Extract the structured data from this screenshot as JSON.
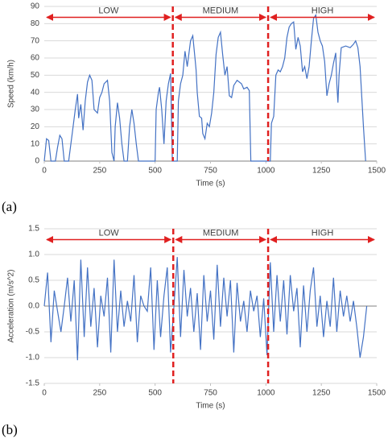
{
  "chart_data": [
    {
      "type": "line",
      "label": "(a)",
      "xlabel": "Time (s)",
      "ylabel": "Speed (km/h)",
      "color": "#4472c4",
      "divider_color": "#e02020",
      "xlim": [
        0,
        1500
      ],
      "xticks": [
        0,
        250,
        500,
        750,
        1000,
        1250,
        1500
      ],
      "ylim": [
        0,
        90
      ],
      "yticks": [
        0,
        10,
        20,
        30,
        40,
        50,
        60,
        70,
        80,
        90
      ],
      "grid": true,
      "dividers": [
        580,
        1010
      ],
      "regions": [
        "LOW",
        "MEDIUM",
        "HIGH"
      ],
      "x": [
        0,
        10,
        20,
        30,
        50,
        60,
        70,
        80,
        90,
        110,
        130,
        140,
        150,
        155,
        165,
        175,
        185,
        195,
        205,
        215,
        225,
        240,
        250,
        260,
        270,
        285,
        295,
        305,
        315,
        320,
        330,
        340,
        350,
        360,
        375,
        385,
        395,
        405,
        415,
        425,
        480,
        500,
        505,
        515,
        520,
        530,
        540,
        550,
        560,
        570,
        578,
        600,
        605,
        615,
        625,
        635,
        645,
        650,
        660,
        670,
        680,
        685,
        690,
        700,
        710,
        715,
        725,
        735,
        745,
        755,
        765,
        775,
        785,
        795,
        805,
        815,
        825,
        835,
        845,
        855,
        870,
        880,
        890,
        900,
        915,
        925,
        932,
        1020,
        1025,
        1035,
        1045,
        1055,
        1065,
        1075,
        1085,
        1095,
        1105,
        1115,
        1125,
        1135,
        1145,
        1155,
        1165,
        1175,
        1185,
        1195,
        1205,
        1215,
        1225,
        1235,
        1245,
        1255,
        1265,
        1275,
        1285,
        1295,
        1305,
        1315,
        1320,
        1325,
        1330,
        1340,
        1360,
        1380,
        1395,
        1405,
        1415,
        1425,
        1440,
        1450
      ],
      "values": [
        0,
        13,
        12,
        0,
        0,
        8,
        15,
        13,
        0,
        0,
        20,
        30,
        39,
        25,
        33,
        18,
        35,
        46,
        50,
        47,
        30,
        28,
        37,
        40,
        45,
        47,
        35,
        5,
        0,
        20,
        34,
        25,
        10,
        0,
        0,
        20,
        30,
        22,
        10,
        0,
        0,
        0,
        30,
        40,
        43,
        30,
        10,
        35,
        45,
        51,
        0,
        0,
        35,
        45,
        50,
        64,
        55,
        60,
        70,
        73,
        60,
        53,
        40,
        26,
        25,
        16,
        13,
        22,
        20,
        28,
        40,
        62,
        72,
        75,
        62,
        50,
        55,
        38,
        37,
        44,
        47,
        46,
        45,
        42,
        43,
        41,
        0,
        0,
        22,
        26,
        50,
        53,
        52,
        55,
        60,
        72,
        78,
        80,
        81,
        65,
        72,
        67,
        52,
        55,
        48,
        55,
        70,
        83,
        85,
        75,
        70,
        67,
        58,
        38,
        45,
        50,
        57,
        63,
        45,
        34,
        50,
        66,
        67,
        66,
        68,
        70,
        66,
        55,
        20,
        0
      ]
    },
    {
      "type": "line",
      "label": "(b)",
      "xlabel": "Time (s)",
      "ylabel": "Acceleration (m/s^2)",
      "color": "#4472c4",
      "divider_color": "#e02020",
      "xlim": [
        0,
        1500
      ],
      "xticks": [
        0,
        250,
        500,
        750,
        1000,
        1250,
        1500
      ],
      "ylim": [
        -1.5,
        1.5
      ],
      "yticks": [
        -1.5,
        {
          "value": -1,
          "label": "-1.0"
        },
        -0.5,
        {
          "value": 0,
          "label": "0.0"
        },
        0.5,
        {
          "value": 1,
          "label": "1.0"
        },
        1.5
      ],
      "grid": true,
      "dividers": [
        582,
        1010
      ],
      "regions": [
        "LOW",
        "MEDIUM",
        "HIGH"
      ],
      "x": [
        0,
        15,
        30,
        45,
        60,
        75,
        90,
        105,
        120,
        135,
        150,
        165,
        180,
        195,
        210,
        225,
        240,
        255,
        270,
        285,
        300,
        315,
        330,
        345,
        360,
        375,
        390,
        405,
        420,
        435,
        450,
        465,
        480,
        495,
        510,
        525,
        540,
        555,
        570,
        585,
        600,
        615,
        630,
        645,
        660,
        675,
        690,
        705,
        720,
        735,
        750,
        765,
        780,
        795,
        810,
        825,
        840,
        855,
        870,
        885,
        900,
        915,
        930,
        945,
        960,
        975,
        990,
        1005,
        1020,
        1035,
        1050,
        1065,
        1080,
        1095,
        1110,
        1125,
        1140,
        1155,
        1170,
        1185,
        1200,
        1215,
        1230,
        1245,
        1260,
        1275,
        1290,
        1305,
        1320,
        1335,
        1350,
        1365,
        1380,
        1395,
        1410,
        1425,
        1440,
        1455
      ],
      "values": [
        0,
        0.65,
        -0.7,
        0.3,
        -0.1,
        -0.5,
        0,
        0.55,
        -0.3,
        0.5,
        -1.05,
        0.9,
        -0.6,
        0.75,
        -0.4,
        0.35,
        -0.8,
        0.2,
        -0.2,
        0.55,
        -0.9,
        0.9,
        -0.5,
        0.3,
        -0.4,
        0.1,
        -0.3,
        0.6,
        -0.7,
        0.2,
        0,
        -0.1,
        0.75,
        -0.85,
        0.5,
        -0.6,
        0.2,
        0.75,
        -0.9,
        0,
        0.95,
        -0.6,
        0.7,
        -0.2,
        0.35,
        -0.5,
        0.25,
        -0.85,
        0.6,
        -0.3,
        0.3,
        -0.65,
        0.8,
        -0.4,
        0.55,
        -0.2,
        0.5,
        -0.9,
        0.45,
        -0.3,
        0.1,
        -0.5,
        0.3,
        -0.1,
        0.2,
        -0.6,
        0.15,
        -0.95,
        0.85,
        -0.5,
        0.6,
        -0.3,
        0.5,
        -0.55,
        0.6,
        -0.1,
        0.35,
        -0.8,
        0.4,
        -0.5,
        0.3,
        0.75,
        -0.4,
        0.2,
        -0.6,
        0.1,
        -0.4,
        0.55,
        -0.5,
        0.3,
        -0.2,
        0.2,
        -0.3,
        0.1,
        -0.4,
        -1.0,
        -0.6,
        0
      ]
    }
  ]
}
